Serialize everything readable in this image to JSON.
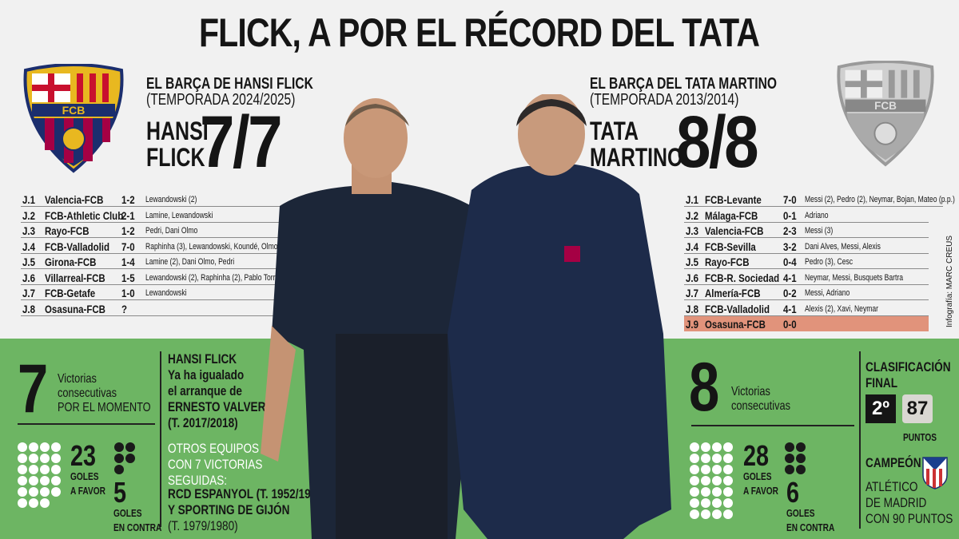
{
  "title": "FLICK, A POR EL RÉCORD DEL TATA",
  "flick": {
    "heading": "EL BARÇA DE HANSI FLICK",
    "season": "(TEMPORADA 2024/2025)",
    "name_line1": "HANSI",
    "name_line2": "FLICK",
    "record": "7/7",
    "crest_text": "FCB",
    "matches": [
      {
        "j": "J.1",
        "match": "Valencia-FCB",
        "score": "1-2",
        "scorers": "Lewandowski (2)"
      },
      {
        "j": "J.2",
        "match": "FCB-Athletic Club",
        "score": "2-1",
        "scorers": "Lamine, Lewandowski"
      },
      {
        "j": "J.3",
        "match": "Rayo-FCB",
        "score": "1-2",
        "scorers": "Pedri, Dani Olmo"
      },
      {
        "j": "J.4",
        "match": "FCB-Valladolid",
        "score": "7-0",
        "scorers": "Raphinha (3), Lewandowski, Koundé, Olmo, Ferran"
      },
      {
        "j": "J.5",
        "match": "Girona-FCB",
        "score": "1-4",
        "scorers": "Lamine (2), Dani Olmo, Pedri"
      },
      {
        "j": "J.6",
        "match": "Villarreal-FCB",
        "score": "1-5",
        "scorers": "Lewandowski (2), Raphinha (2), Pablo Torre"
      },
      {
        "j": "J.7",
        "match": "FCB-Getafe",
        "score": "1-0",
        "scorers": "Lewandowski"
      },
      {
        "j": "J.8",
        "match": "Osasuna-FCB",
        "score": "?",
        "scorers": ""
      }
    ],
    "wins": "7",
    "wins_label1": "Victorias",
    "wins_label2": "consecutivas",
    "wins_label3": "POR EL MOMENTO",
    "goals_for": 23,
    "goals_for_label1": "GOLES",
    "goals_for_label2": "A FAVOR",
    "goals_against": 5,
    "goals_against_label1": "GOLES",
    "goals_against_label2": "EN CONTRA",
    "note": [
      "HANSI FLICK",
      "Ya ha igualado",
      "el arranque de",
      "ERNESTO VALVERDE",
      "(T. 2017/2018)"
    ],
    "others": [
      "OTROS EQUIPOS",
      "CON 7 VICTORIAS",
      "SEGUIDAS:"
    ],
    "others_teams": [
      "RCD ESPANYOL (T. 1952/1953)",
      "Y SPORTING DE GIJÓN",
      "(T. 1979/1980)"
    ]
  },
  "martino": {
    "heading": "EL BARÇA DEL TATA MARTINO",
    "season": "(TEMPORADA 2013/2014)",
    "name_line1": "TATA",
    "name_line2": "MARTINO",
    "record": "8/8",
    "crest_text": "FCB",
    "matches": [
      {
        "j": "J.1",
        "match": "FCB-Levante",
        "score": "7-0",
        "scorers": "Messi (2), Pedro (2), Neymar, Bojan, Mateo (p.p.)"
      },
      {
        "j": "J.2",
        "match": "Málaga-FCB",
        "score": "0-1",
        "scorers": "Adriano"
      },
      {
        "j": "J.3",
        "match": "Valencia-FCB",
        "score": "2-3",
        "scorers": "Messi (3)"
      },
      {
        "j": "J.4",
        "match": "FCB-Sevilla",
        "score": "3-2",
        "scorers": "Dani Alves, Messi, Alexis"
      },
      {
        "j": "J.5",
        "match": "Rayo-FCB",
        "score": "0-4",
        "scorers": "Pedro (3), Cesc"
      },
      {
        "j": "J.6",
        "match": "FCB-R. Sociedad",
        "score": "4-1",
        "scorers": "Neymar, Messi, Busquets Bartra"
      },
      {
        "j": "J.7",
        "match": "Almería-FCB",
        "score": "0-2",
        "scorers": "Messi, Adriano"
      },
      {
        "j": "J.8",
        "match": "FCB-Valladolid",
        "score": "4-1",
        "scorers": "Alexis (2), Xavi, Neymar"
      },
      {
        "j": "J.9",
        "match": "Osasuna-FCB",
        "score": "0-0",
        "scorers": ""
      }
    ],
    "wins": "8",
    "wins_label1": "Victorias",
    "wins_label2": "consecutivas",
    "goals_for": 28,
    "goals_for_label1": "GOLES",
    "goals_for_label2": "A FAVOR",
    "goals_against": 6,
    "goals_against_label1": "GOLES",
    "goals_against_label2": "EN CONTRA",
    "final_label1": "CLASIFICACIÓN",
    "final_label2": "FINAL",
    "position": "2º",
    "points": "87",
    "points_label": "PUNTOS",
    "champion_label": "CAMPEÓN",
    "champion": [
      "ATLÉTICO",
      "DE MADRID",
      "CON 90 PUNTOS"
    ]
  },
  "credit": "Infografía: MARC CREUS",
  "colors": {
    "green": "#6db563",
    "highlight": "#e1937b",
    "background": "#f1f1f1"
  }
}
